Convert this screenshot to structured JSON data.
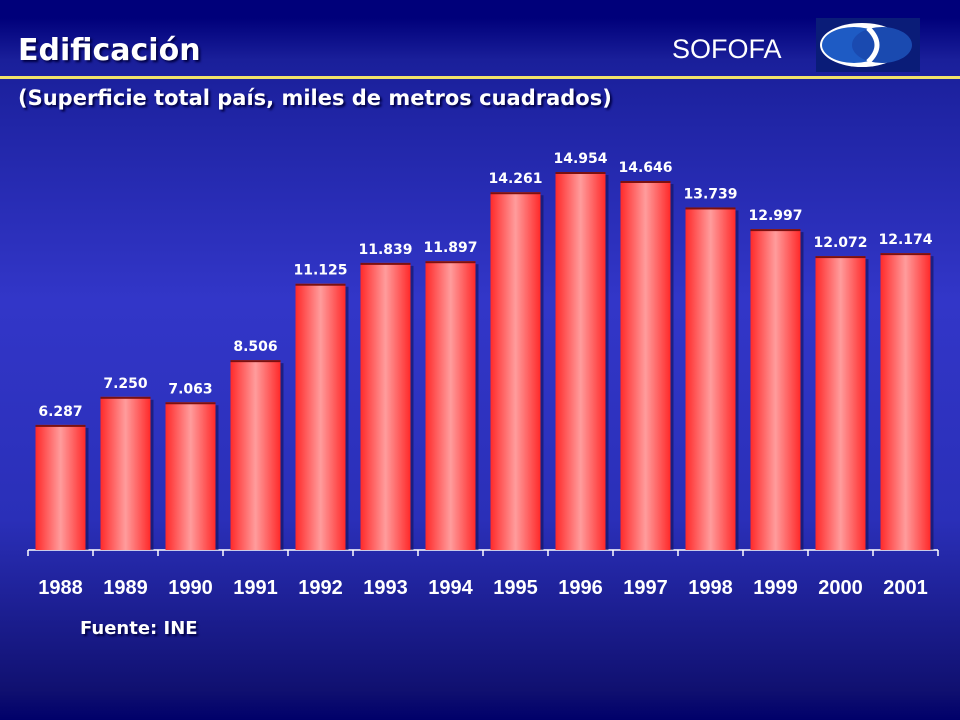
{
  "header": {
    "title": "Edificación",
    "brand": "SOFOFA",
    "subtitle": "(Superficie total país, miles de metros cuadrados)"
  },
  "footer": {
    "source": "Fuente: INE"
  },
  "colors": {
    "bar": "#ff3b3b",
    "bar_highlight": "#ff9a9a",
    "accent_rule": "#f2e26a",
    "text": "#ffffff"
  },
  "icons": {
    "logo": "sofofa-logo-icon"
  },
  "chart_data": {
    "type": "bar",
    "title": "",
    "xlabel": "",
    "ylabel": "",
    "categories": [
      "1988",
      "1989",
      "1990",
      "1991",
      "1992",
      "1993",
      "1994",
      "1995",
      "1996",
      "1997",
      "1998",
      "1999",
      "2000",
      "2001"
    ],
    "values": [
      6287,
      7250,
      7063,
      8506,
      11125,
      11839,
      11897,
      14261,
      14954,
      14646,
      13739,
      12997,
      12072,
      12174
    ],
    "value_labels": [
      "6.287",
      "7.250",
      "7.063",
      "8.506",
      "11.125",
      "11.839",
      "11.897",
      "14.261",
      "14.954",
      "14.646",
      "13.739",
      "12.997",
      "12.072",
      "12.174"
    ],
    "ylim": [
      2000,
      16000
    ],
    "grid": false,
    "legend": "none"
  }
}
